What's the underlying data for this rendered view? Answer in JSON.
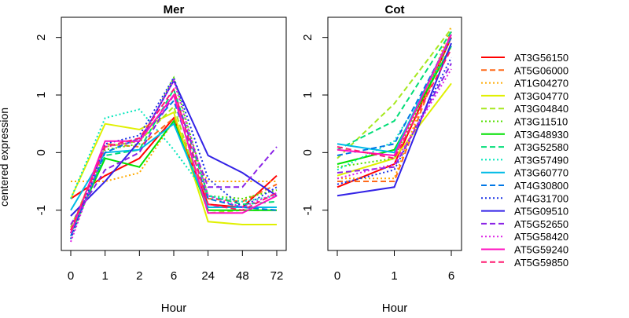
{
  "figure": {
    "ylabel": "centered expression",
    "legend_position": "right"
  },
  "chart_data": [
    {
      "type": "line",
      "title": "Mer",
      "xlabel": "Hour",
      "ylabel": "centered expression",
      "categories": [
        "0",
        "1",
        "2",
        "6",
        "24",
        "48",
        "72"
      ],
      "ylim": [
        -1.7,
        2.35
      ],
      "yticks": [
        "-1",
        "0",
        "1",
        "2"
      ],
      "grid": false,
      "series": [
        {
          "name": "AT3G56150",
          "values": [
            -0.8,
            -0.4,
            -0.1,
            0.6,
            -0.9,
            -0.95,
            -0.4
          ]
        },
        {
          "name": "AT5G06000",
          "values": [
            -1.35,
            0.15,
            0.1,
            0.6,
            -0.8,
            -0.85,
            -0.55
          ]
        },
        {
          "name": "AT1G04270",
          "values": [
            -0.5,
            -0.5,
            -0.35,
            0.55,
            -0.5,
            -0.5,
            -0.5
          ]
        },
        {
          "name": "AT3G04770",
          "values": [
            -0.8,
            0.5,
            0.4,
            0.7,
            -1.2,
            -1.25,
            -1.25
          ]
        },
        {
          "name": "AT3G04840",
          "values": [
            -1.3,
            0.1,
            0.2,
            0.8,
            -1.05,
            -1.0,
            -1.0
          ]
        },
        {
          "name": "AT3G11510",
          "values": [
            -1.5,
            0.05,
            0.15,
            1.3,
            -0.75,
            -0.8,
            -0.65
          ]
        },
        {
          "name": "AT3G48930",
          "values": [
            -1.4,
            -0.1,
            -0.25,
            0.55,
            -1.0,
            -1.0,
            -1.0
          ]
        },
        {
          "name": "AT3G52580",
          "values": [
            -1.4,
            -0.05,
            0.05,
            1.1,
            -0.75,
            -0.9,
            -0.85
          ]
        },
        {
          "name": "AT3G57490",
          "values": [
            -0.8,
            0.6,
            0.75,
            0.05,
            -0.75,
            -0.85,
            -0.75
          ]
        },
        {
          "name": "AT3G60770",
          "values": [
            -1.0,
            0.0,
            0.05,
            0.5,
            -0.95,
            -0.95,
            -0.95
          ]
        },
        {
          "name": "AT4G30800",
          "values": [
            -1.45,
            0.0,
            0.25,
            0.9,
            -0.8,
            -0.95,
            -1.0
          ]
        },
        {
          "name": "AT4G31700",
          "values": [
            -1.5,
            0.15,
            0.3,
            1.3,
            -0.45,
            -0.95,
            -0.6
          ]
        },
        {
          "name": "AT5G09510",
          "values": [
            -1.1,
            -0.5,
            0.2,
            1.25,
            -0.05,
            -0.35,
            -0.75
          ]
        },
        {
          "name": "AT5G52650",
          "values": [
            -1.25,
            -0.3,
            0.0,
            1.0,
            -0.6,
            -0.6,
            0.1
          ]
        },
        {
          "name": "AT5G58420",
          "values": [
            -1.55,
            0.1,
            0.2,
            1.25,
            -0.75,
            -0.95,
            -0.7
          ]
        },
        {
          "name": "AT5G59240",
          "values": [
            -1.4,
            0.2,
            0.2,
            1.0,
            -1.05,
            -1.05,
            -0.75
          ]
        },
        {
          "name": "AT5G59850",
          "values": [
            -1.35,
            0.1,
            0.25,
            1.1,
            -0.9,
            -1.0,
            -0.7
          ]
        }
      ]
    },
    {
      "type": "line",
      "title": "Cot",
      "xlabel": "Hour",
      "categories": [
        "0",
        "1",
        "6"
      ],
      "ylim": [
        -1.7,
        2.35
      ],
      "yticks": [
        "-1",
        "0",
        "1",
        "2"
      ],
      "grid": false,
      "series": [
        {
          "name": "AT3G56150",
          "values": [
            -0.6,
            -0.2,
            2.0
          ]
        },
        {
          "name": "AT5G06000",
          "values": [
            -0.5,
            -0.5,
            2.1
          ]
        },
        {
          "name": "AT1G04270",
          "values": [
            -0.45,
            -0.45,
            2.2
          ]
        },
        {
          "name": "AT3G04770",
          "values": [
            -0.4,
            -0.1,
            1.2
          ]
        },
        {
          "name": "AT3G04840",
          "values": [
            -0.1,
            0.85,
            2.15
          ]
        },
        {
          "name": "AT3G11510",
          "values": [
            -0.25,
            -0.1,
            2.0
          ]
        },
        {
          "name": "AT3G48930",
          "values": [
            -0.2,
            0.05,
            1.85
          ]
        },
        {
          "name": "AT3G52580",
          "values": [
            0.05,
            0.55,
            2.1
          ]
        },
        {
          "name": "AT3G57490",
          "values": [
            -0.3,
            0.2,
            1.85
          ]
        },
        {
          "name": "AT3G60770",
          "values": [
            0.15,
            0.0,
            2.05
          ]
        },
        {
          "name": "AT4G30800",
          "values": [
            -0.05,
            0.15,
            2.0
          ]
        },
        {
          "name": "AT4G31700",
          "values": [
            -0.55,
            -0.3,
            1.65
          ]
        },
        {
          "name": "AT5G09510",
          "values": [
            -0.75,
            -0.6,
            1.9
          ]
        },
        {
          "name": "AT5G52650",
          "values": [
            -0.35,
            -0.25,
            1.55
          ]
        },
        {
          "name": "AT5G58420",
          "values": [
            -0.45,
            -0.2,
            1.45
          ]
        },
        {
          "name": "AT5G59240",
          "values": [
            0.05,
            -0.05,
            2.05
          ]
        },
        {
          "name": "AT5G59850",
          "values": [
            0.1,
            -0.1,
            1.8
          ]
        }
      ]
    }
  ],
  "style": {
    "series": [
      {
        "color": "#ff0000",
        "dash": "solid"
      },
      {
        "color": "#ff6a1a",
        "dash": "dashed"
      },
      {
        "color": "#ffaa00",
        "dash": "dotted"
      },
      {
        "color": "#e0f000",
        "dash": "solid"
      },
      {
        "color": "#a6e81f",
        "dash": "dashed"
      },
      {
        "color": "#55e000",
        "dash": "dotted"
      },
      {
        "color": "#00e000",
        "dash": "solid"
      },
      {
        "color": "#00dd77",
        "dash": "dashed"
      },
      {
        "color": "#00e6bb",
        "dash": "dotted"
      },
      {
        "color": "#00bbe6",
        "dash": "solid"
      },
      {
        "color": "#0077e6",
        "dash": "dashed"
      },
      {
        "color": "#1a33e6",
        "dash": "dotted"
      },
      {
        "color": "#3322e6",
        "dash": "solid"
      },
      {
        "color": "#8a22e6",
        "dash": "dashed"
      },
      {
        "color": "#dd22e6",
        "dash": "dotted"
      },
      {
        "color": "#ff10c0",
        "dash": "solid"
      },
      {
        "color": "#ff1a70",
        "dash": "dashed"
      }
    ]
  }
}
